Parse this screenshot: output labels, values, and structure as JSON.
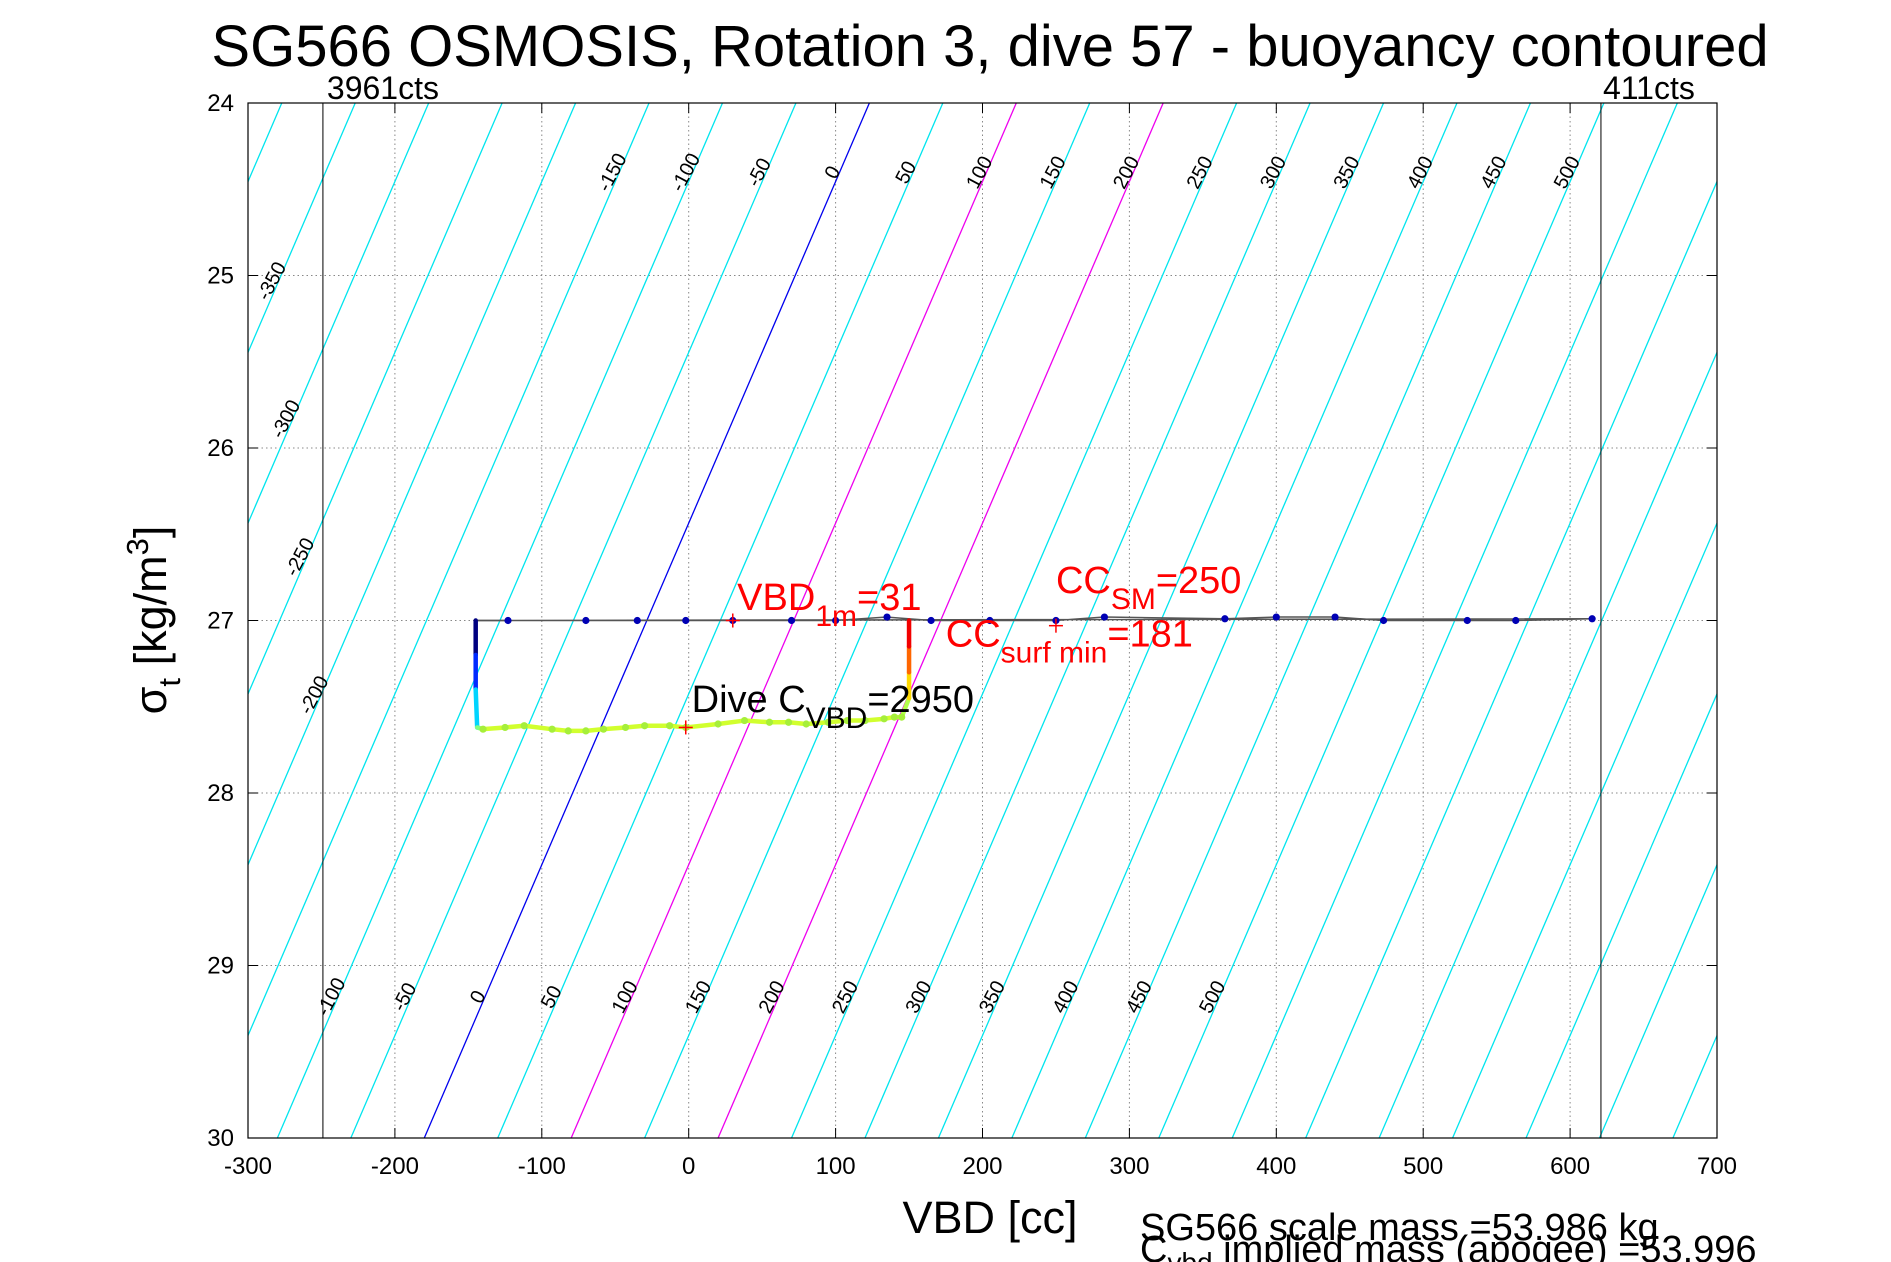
{
  "chart_data": {
    "type": "scatter",
    "title": "SG566 OSMOSIS, Rotation 3, dive 57 - buoyancy contoured",
    "xlabel": "VBD [cc]",
    "ylabel_main": "σ",
    "ylabel_sub": "t",
    "ylabel_rest": " [kg/m",
    "ylabel_sup": "3",
    "ylabel_close": "]",
    "xlim": [
      -300,
      700
    ],
    "ylim": [
      24,
      30
    ],
    "y_reversed": true,
    "grid": true,
    "xticks": [
      -300,
      -200,
      -100,
      0,
      100,
      200,
      300,
      400,
      500,
      600,
      700
    ],
    "yticks": [
      24,
      25,
      26,
      27,
      28,
      29,
      30
    ],
    "vlines": [
      {
        "x": -249,
        "label": "3961cts"
      },
      {
        "x": 621,
        "label": "411cts"
      }
    ],
    "contour_slope": 0.17,
    "contours": [
      -700,
      -650,
      -600,
      -550,
      -500,
      -450,
      -400,
      -350,
      -300,
      -250,
      -200,
      -150,
      -100,
      -50,
      0,
      50,
      100,
      150,
      200,
      250,
      300,
      350,
      400,
      450,
      500,
      550,
      600,
      650,
      700,
      750,
      800,
      850,
      900
    ],
    "contour_origin_x": -180,
    "contour_origin_y": 30,
    "contour_colors": {
      "default": "#00e5ee",
      "zero": "#0000ee",
      "highlight": "#ee00ee"
    },
    "highlight_levels": [
      100,
      200
    ],
    "contour_labels_top": [
      -150,
      -100,
      -50,
      0,
      50,
      100,
      150,
      200,
      250,
      300,
      350,
      400,
      450,
      500
    ],
    "contour_labels_left": [
      -350,
      -300,
      -250,
      -200
    ],
    "contour_labels_bottom": [
      -100,
      -50,
      0,
      50,
      100,
      150,
      200,
      250,
      300,
      350,
      400,
      450,
      500
    ],
    "surface_points": {
      "x": [
        -123,
        -70,
        -35,
        -2,
        30,
        70,
        100,
        135,
        165,
        205,
        250,
        283,
        365,
        400,
        440,
        473,
        530,
        563,
        615
      ],
      "y": [
        27.0,
        27.0,
        27.0,
        27.0,
        27.0,
        27.0,
        27.0,
        26.98,
        27.0,
        27.0,
        27.0,
        26.98,
        26.99,
        26.98,
        26.98,
        27.0,
        27.0,
        27.0,
        26.99
      ]
    },
    "profile": {
      "x": [
        -145,
        -145,
        -145,
        -144,
        -140,
        -125,
        -112,
        -93,
        -82,
        -70,
        -58,
        -43,
        -30,
        -13,
        -2,
        20,
        38,
        55,
        68,
        80,
        95,
        108,
        120,
        133,
        140,
        145,
        150,
        150,
        150,
        150
      ],
      "y": [
        27.0,
        27.2,
        27.4,
        27.62,
        27.63,
        27.62,
        27.61,
        27.63,
        27.64,
        27.64,
        27.63,
        27.62,
        27.61,
        27.61,
        27.62,
        27.6,
        27.58,
        27.59,
        27.59,
        27.6,
        27.59,
        27.58,
        27.58,
        27.57,
        27.56,
        27.56,
        27.45,
        27.3,
        27.15,
        27.0
      ]
    },
    "markers": [
      {
        "x": 30,
        "y": 27.0
      },
      {
        "x": 250,
        "y": 27.03
      },
      {
        "x": -2,
        "y": 27.62
      }
    ],
    "annotations": [
      {
        "main": "VBD",
        "sub": "1m",
        "rest": "=31",
        "x": 33,
        "y": 26.94,
        "color": "#ff0000"
      },
      {
        "main": "CC",
        "sub": "SM",
        "rest": "=250",
        "x": 250,
        "y": 26.84,
        "color": "#ff0000"
      },
      {
        "main": "CC",
        "sub": "surf min",
        "rest": "=181",
        "x": 175,
        "y": 27.15,
        "color": "#ff0000"
      },
      {
        "main": "Dive C",
        "sub": "VBD",
        "rest": "=2950",
        "x": 2,
        "y": 27.53,
        "color": "#000000"
      }
    ],
    "footer_line1": "SG566 scale mass =53.986 kg",
    "footer_line2_main": "C",
    "footer_line2_sub": "vbd",
    "footer_line2_rest": " implied mass (apogee) =53.996"
  }
}
